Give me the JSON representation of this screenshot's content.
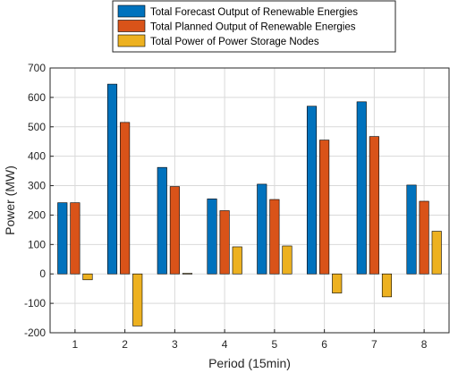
{
  "chart_data": {
    "type": "bar",
    "categories": [
      "1",
      "2",
      "3",
      "4",
      "5",
      "6",
      "7",
      "8"
    ],
    "series": [
      {
        "name": "Total Forecast Output of Renewable Energies",
        "color": "#0072BD",
        "values": [
          242,
          645,
          362,
          255,
          305,
          570,
          585,
          302
        ]
      },
      {
        "name": "Total Planned Output of Renewable Energies",
        "color": "#D95319",
        "values": [
          242,
          515,
          297,
          215,
          253,
          455,
          467,
          247
        ]
      },
      {
        "name": "Total Power of Power Storage Nodes",
        "color": "#EDB120",
        "values": [
          -20,
          -177,
          2,
          92,
          95,
          -65,
          -78,
          145
        ]
      }
    ],
    "xlabel": "Period (15min)",
    "ylabel": "Power (MW)",
    "ylim": [
      -200,
      700
    ],
    "yticks": [
      -200,
      -100,
      0,
      100,
      200,
      300,
      400,
      500,
      600,
      700
    ],
    "grid": true,
    "legend_location": "top-center"
  }
}
